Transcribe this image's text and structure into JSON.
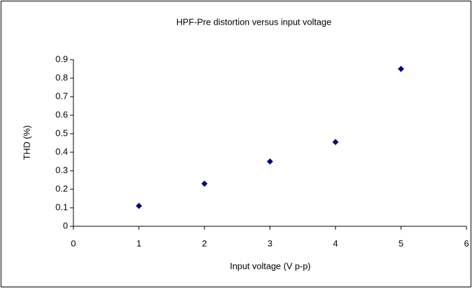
{
  "chart_data": {
    "type": "scatter",
    "title": "HPF-Pre distortion versus input voltage",
    "x_label": "Input voltage (V p-p)",
    "y_label": "THD (%)",
    "x": [
      1,
      2,
      3,
      4,
      5
    ],
    "values": [
      0.11,
      0.23,
      0.35,
      0.455,
      0.85
    ],
    "color": "#000080",
    "xlim": [
      0,
      6
    ],
    "xticks": [
      0,
      1,
      2,
      3,
      4,
      5,
      6
    ],
    "ylim": [
      0,
      0.9
    ],
    "yticks": [
      0,
      0.1,
      0.2,
      0.3,
      0.4,
      0.5,
      0.6,
      0.7,
      0.8,
      0.9
    ],
    "grid": false
  }
}
